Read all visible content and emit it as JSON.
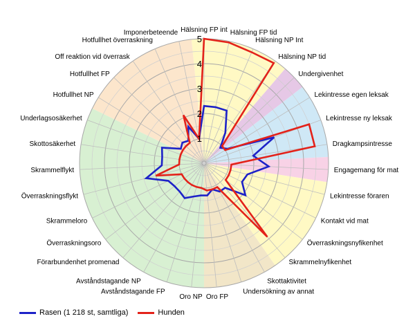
{
  "chart_data": {
    "type": "radar",
    "categories": [
      "Hälsning FP int",
      "Hälsning FP tid",
      "Hälsning NP Int",
      "Hälsning NP tid",
      "Undergivenhet",
      "Lekintresse egen leksak",
      "Lekintresse ny leksak",
      "Dragkampsintresse",
      "Engagemang för mat",
      "Lekintresse föraren",
      "Kontakt vid mat",
      "Överraskningsnyfikenhet",
      "Skrammelnyfikenhet",
      "Skottaktivitet",
      "Undersökning av annat",
      "Oro FP",
      "Oro NP",
      "Avståndstagande FP",
      "Avståndstagande NP",
      "Förarbundenhet promenad",
      "Överraskningsoro",
      "Skrammeloro",
      "Överraskningsflykt",
      "Skrammelflykt",
      "Skottosäkerhet",
      "Underlagsosäkerhet",
      "Hotfullhet NP",
      "Hotfullhet FP",
      "Off reaktion vid överrask",
      "Hotfullhet överraskning",
      "Imponerbeteende"
    ],
    "rlim": [
      0,
      5
    ],
    "ticks": [
      "1",
      "2",
      "3",
      "4",
      "5"
    ],
    "grid": true,
    "legend_position": "bottom-left",
    "sectors": [
      {
        "from": 0,
        "to": 3,
        "color": "#FFF9C4"
      },
      {
        "from": 4,
        "to": 4,
        "color": "#E6C8E6"
      },
      {
        "from": 5,
        "to": 7,
        "color": "#CFE8F6"
      },
      {
        "from": 8,
        "to": 8,
        "color": "#F8D2E6"
      },
      {
        "from": 9,
        "to": 12,
        "color": "#FFF9C4"
      },
      {
        "from": 13,
        "to": 15,
        "color": "#F2E6C8"
      },
      {
        "from": 16,
        "to": 25,
        "color": "#D8F0D2"
      },
      {
        "from": 26,
        "to": 30,
        "color": "#FCE6CC"
      }
    ],
    "series": [
      {
        "name": "Rasen (1 218 st, samtliga)",
        "color": "#1D22C8",
        "values": [
          2.3,
          2.3,
          2.3,
          1.5,
          0.9,
          1.1,
          3.0,
          2.0,
          2.6,
          1.8,
          1.7,
          2.1,
          1.3,
          1.3,
          1.1,
          1.3,
          1.3,
          1.4,
          1.6,
          1.5,
          1.5,
          1.6,
          2.4,
          1.7,
          1.7,
          1.8,
          1.1,
          1.2,
          1.1,
          1.6,
          1.0
        ]
      },
      {
        "name": "Hunden",
        "color": "#E3221A",
        "values": [
          5.0,
          4.95,
          4.85,
          4.9,
          1.0,
          1.0,
          4.5,
          4.5,
          1.1,
          1.1,
          1.1,
          1.1,
          3.9,
          1.1,
          1.1,
          1.1,
          1.0,
          1.0,
          1.0,
          1.0,
          1.0,
          1.0,
          2.0,
          1.0,
          1.0,
          1.0,
          1.0,
          1.0,
          1.0,
          2.1,
          1.0
        ]
      }
    ]
  }
}
